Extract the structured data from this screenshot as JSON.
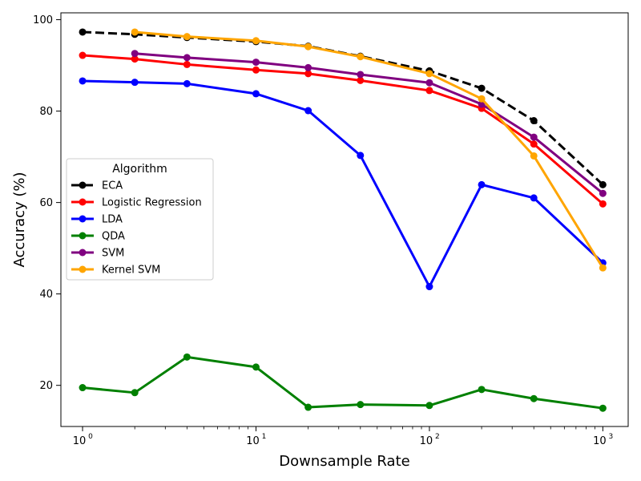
{
  "chart_data": {
    "type": "line",
    "xlabel": "Downsample Rate",
    "ylabel": "Accuracy (%)",
    "xscale": "log",
    "xlim": [
      0.75,
      1400
    ],
    "ylim": [
      11,
      101.5
    ],
    "x_ticks": [
      1,
      10,
      100,
      1000
    ],
    "x_tick_labels": [
      "10",
      "10",
      "10",
      "10"
    ],
    "x_tick_exponents": [
      "0",
      "1",
      "2",
      "3"
    ],
    "y_ticks": [
      20,
      40,
      60,
      80,
      100
    ],
    "y_tick_labels": [
      "20",
      "40",
      "60",
      "80",
      "100"
    ],
    "grid": false,
    "legend": {
      "title": "Algorithm",
      "placement": "center-left"
    },
    "x": [
      1,
      2,
      4,
      10,
      20,
      40,
      100,
      200,
      400,
      1000
    ],
    "series": [
      {
        "name": "ECA",
        "color": "#000000",
        "dashed": true,
        "values": [
          97.3,
          96.8,
          96.1,
          95.2,
          94.2,
          92.0,
          88.8,
          85.0,
          77.9,
          63.9
        ]
      },
      {
        "name": "Logistic Regression",
        "color": "#ff0000",
        "dashed": false,
        "values": [
          92.2,
          91.4,
          90.2,
          89.0,
          88.2,
          86.7,
          84.5,
          80.6,
          72.8,
          59.7
        ]
      },
      {
        "name": "LDA",
        "color": "#0000ff",
        "dashed": false,
        "values": [
          86.6,
          86.3,
          86.0,
          83.8,
          80.1,
          70.3,
          41.6,
          63.9,
          61.0,
          46.8
        ]
      },
      {
        "name": "QDA",
        "color": "#008000",
        "dashed": false,
        "values": [
          19.5,
          18.4,
          26.2,
          24.0,
          15.2,
          15.8,
          15.6,
          19.1,
          17.1,
          15.0
        ]
      },
      {
        "name": "SVM",
        "color": "#800080",
        "dashed": false,
        "values": [
          null,
          92.6,
          91.7,
          90.7,
          89.5,
          88.0,
          86.2,
          81.5,
          74.3,
          62.0
        ]
      },
      {
        "name": "Kernel SVM",
        "color": "#ffa500",
        "dashed": false,
        "values": [
          null,
          97.3,
          96.3,
          95.4,
          94.1,
          91.9,
          88.2,
          82.7,
          70.2,
          45.7
        ]
      }
    ]
  }
}
